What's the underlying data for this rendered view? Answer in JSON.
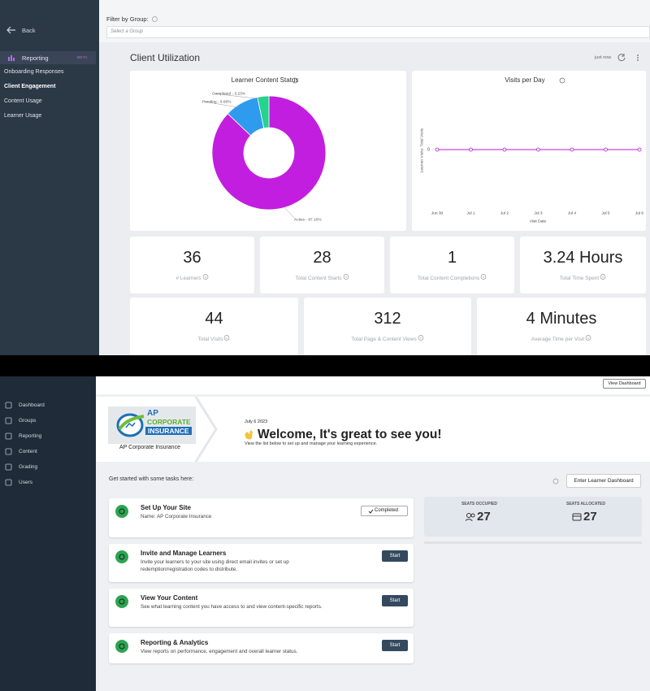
{
  "sidebar_top": {
    "back": "Back",
    "section": "Reporting",
    "badge": "BETA",
    "items": [
      "Onboarding Responses",
      "Client Engagement",
      "Content Usage",
      "Learner Usage"
    ]
  },
  "filter": {
    "label": "Filter by Group:",
    "placeholder": "Select a Group"
  },
  "report": {
    "title": "Client Utilization",
    "updated": "just now"
  },
  "chart_data": [
    {
      "type": "pie",
      "title": "Learner Content Status",
      "values": [
        87.1,
        9.68,
        3.23
      ],
      "value_labels": [
        "Active - 87.10%",
        "Pending - 9.68%",
        "Completed - 3.23%"
      ],
      "colors": [
        "#c21ee0",
        "#2f9bef",
        "#22d48c"
      ]
    },
    {
      "type": "line",
      "title": "Visits per Day",
      "categories": [
        "Jun 30",
        "Jul 1",
        "Jul 2",
        "Jul 3",
        "Jul 4",
        "Jul 5",
        "Jul 6"
      ],
      "values": [
        0,
        0,
        0,
        0,
        0,
        0,
        0
      ],
      "ylim": [
        -1,
        1
      ],
      "yticks": [
        0
      ],
      "ylabel": "Learner Visits: Total Visits",
      "xlabel": "Visit Date",
      "color": "#b51bd6"
    }
  ],
  "stats": [
    {
      "value": 36,
      "label": "# Learners"
    },
    {
      "value": 28,
      "label": "Total Content Starts"
    },
    {
      "value": 1,
      "label": "Total Content Completions"
    },
    {
      "value": "3.24 Hours",
      "label": "Total Time Spent"
    },
    {
      "value": 44,
      "label": "Total Visits"
    },
    {
      "value": 312,
      "label": "Total Page & Content Views"
    },
    {
      "value": "4 Minutes",
      "label": "Average Time per Visit"
    }
  ],
  "sidebar_bottom": [
    "Dashboard",
    "Groups",
    "Reporting",
    "Content",
    "Grading",
    "Users"
  ],
  "header": {
    "button": "View Dashboard"
  },
  "welcome": {
    "logo_text": [
      "AP",
      "CORPORATE",
      "INSURANCE"
    ],
    "site_name": "AP Corporate Insurance",
    "date": "July 6 2023",
    "greeting": "Welcome, It's great to see you!",
    "subtitle": "View the list below to set up and manage your learning experience."
  },
  "tasks": {
    "intro": "Get started with some tasks here:",
    "button": "Enter Learner Dashboard",
    "items": [
      {
        "title": "Set Up Your Site",
        "description": "Name: AP Corporate Insurance",
        "action": "Completed"
      },
      {
        "title": "Invite and Manage Learners",
        "description": "Invite your learners to your site using direct email invites or set up redemption/registration codes to distribute.",
        "action": "Start"
      },
      {
        "title": "View Your Content",
        "description": "See what learning content you have access to and view content-specific reports.",
        "action": "Start"
      },
      {
        "title": "Reporting & Analytics",
        "description": "View reports on performance, engagement and overall learner status.",
        "action": "Start"
      }
    ]
  },
  "seats": [
    {
      "label": "SEATS OCCUPIED",
      "value": 27
    },
    {
      "label": "SEATS ALLOCATED",
      "value": 27
    }
  ]
}
